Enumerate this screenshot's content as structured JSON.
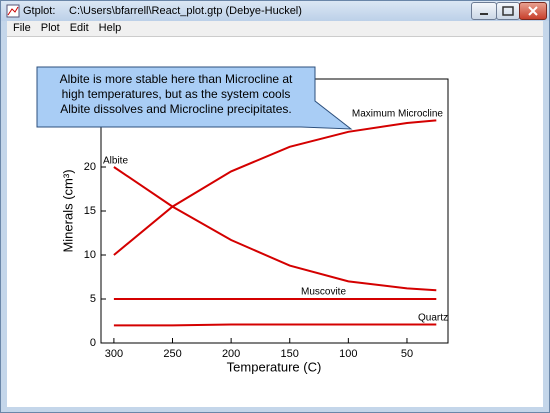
{
  "window": {
    "app": "Gtplot:",
    "file": "C:\\Users\\bfarrell\\React_plot.gtp  (Debye-Huckel)",
    "menu": [
      "File",
      "Plot",
      "Edit",
      "Help"
    ]
  },
  "callout": {
    "lines": [
      "Albite is more stable here than Microcline at",
      "high temperatures, but as the system cools",
      "Albite dissolves and Microcline precipitates."
    ]
  },
  "chart_data": {
    "type": "line",
    "x_label": "Temperature (C)",
    "y_label": "Minerals (cm³)",
    "x": [
      300,
      250,
      200,
      150,
      100,
      50,
      25
    ],
    "series": [
      {
        "name": "Albite",
        "color": "#d40000",
        "values": [
          20,
          15.5,
          11.7,
          8.8,
          7,
          6.2,
          6
        ]
      },
      {
        "name": "Maximum Microcline",
        "color": "#d40000",
        "values": [
          10,
          15.5,
          19.5,
          22.3,
          24,
          25,
          25.3
        ]
      },
      {
        "name": "Muscovite",
        "color": "#d40000",
        "values": [
          5,
          5,
          5,
          5,
          5,
          5,
          5
        ]
      },
      {
        "name": "Quartz",
        "color": "#d40000",
        "values": [
          2,
          2,
          2.1,
          2.1,
          2.1,
          2.1,
          2.1
        ]
      }
    ],
    "xlim": [
      311,
      15
    ],
    "xticks": [
      300,
      250,
      200,
      150,
      100,
      50
    ],
    "ylim": [
      0,
      30
    ],
    "yticks": [
      0,
      5,
      10,
      15,
      20
    ]
  }
}
